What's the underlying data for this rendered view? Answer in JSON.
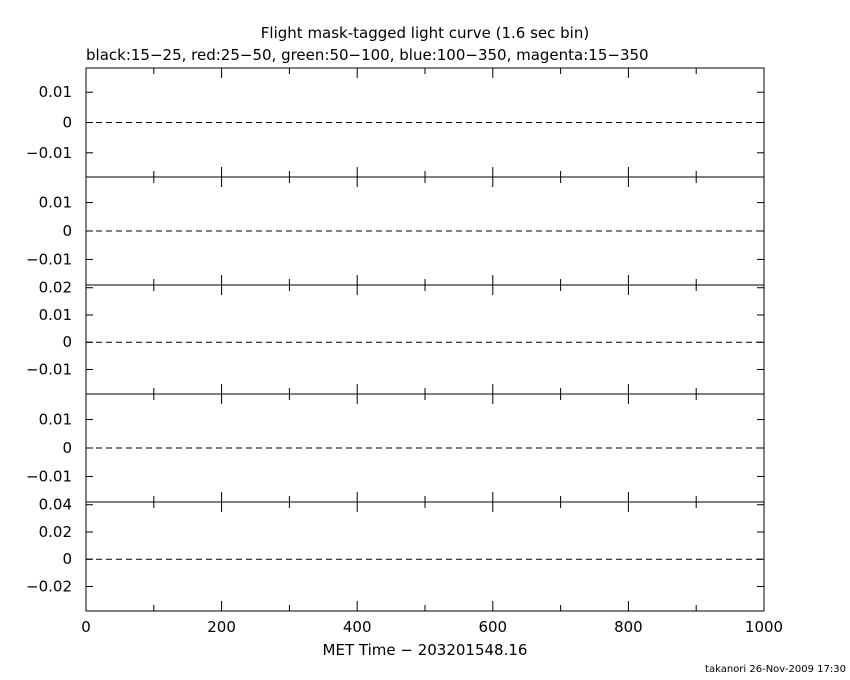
{
  "header": {
    "title": "Flight mask-tagged light curve (1.6 sec bin)",
    "subtitle": "black:15−25, red:25−50, green:50−100, blue:100−350, magenta:15−350"
  },
  "footer": {
    "xlabel": "MET Time − 203201548.16",
    "credit": "takanori 26-Nov-2009 17:30"
  },
  "chart_data": {
    "type": "line",
    "title": "Flight mask-tagged light curve (1.6 sec bin)",
    "subtitle": "black:15−25, red:25−50, green:50−100, blue:100−350, magenta:15−350",
    "xlabel": "MET Time − 203201548.16",
    "xlim": [
      0,
      1000
    ],
    "xticks": [
      0,
      200,
      400,
      600,
      800,
      1000
    ],
    "xtick_labels": [
      "0",
      "200",
      "400",
      "600",
      "800",
      "1000"
    ],
    "x_minor_step": 100,
    "grid": false,
    "legend": "none",
    "panels": [
      {
        "band": "15−25",
        "color": "#000000",
        "ylim": [
          -0.018,
          0.018
        ],
        "yticks": [
          0.01,
          0,
          -0.01
        ],
        "ytick_labels": [
          "0.01",
          "0",
          "−0.01"
        ],
        "series": [],
        "reference_line": 0
      },
      {
        "band": "25−50",
        "color": "#ff0000",
        "ylim": [
          -0.019,
          0.019
        ],
        "yticks": [
          0.01,
          0,
          -0.01
        ],
        "ytick_labels": [
          "0.01",
          "0",
          "−0.01"
        ],
        "series": [],
        "reference_line": 0
      },
      {
        "band": "50−100",
        "color": "#00aa00",
        "ylim": [
          -0.019,
          0.021
        ],
        "yticks": [
          0.02,
          0.01,
          0,
          -0.01
        ],
        "ytick_labels": [
          "0.02",
          "0.01",
          "0",
          "−0.01"
        ],
        "series": [],
        "reference_line": 0
      },
      {
        "band": "100−350",
        "color": "#0000ff",
        "ylim": [
          -0.019,
          0.019
        ],
        "yticks": [
          0.01,
          0,
          -0.01
        ],
        "ytick_labels": [
          "0.01",
          "0",
          "−0.01"
        ],
        "series": [],
        "reference_line": 0
      },
      {
        "band": "15−350",
        "color": "#ff00ff",
        "ylim": [
          -0.038,
          0.042
        ],
        "yticks": [
          0.04,
          0.02,
          0,
          -0.02
        ],
        "ytick_labels": [
          "0.04",
          "0.02",
          "0",
          "−0.02"
        ],
        "series": [],
        "reference_line": 0
      }
    ]
  }
}
